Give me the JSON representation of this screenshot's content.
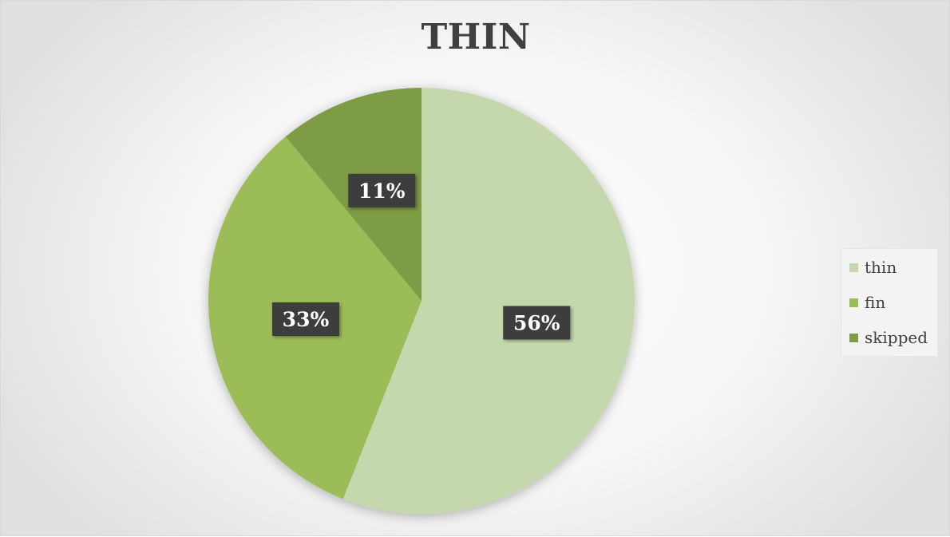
{
  "chart_data": {
    "type": "pie",
    "title": "THIN",
    "categories": [
      "thin",
      "fin",
      "skipped"
    ],
    "values": [
      56,
      33,
      11
    ],
    "data_labels": [
      "56%",
      "33%",
      "11%"
    ],
    "colors": [
      "#c5d8ad",
      "#9cbc59",
      "#7e9b45"
    ],
    "legend_position": "right"
  }
}
